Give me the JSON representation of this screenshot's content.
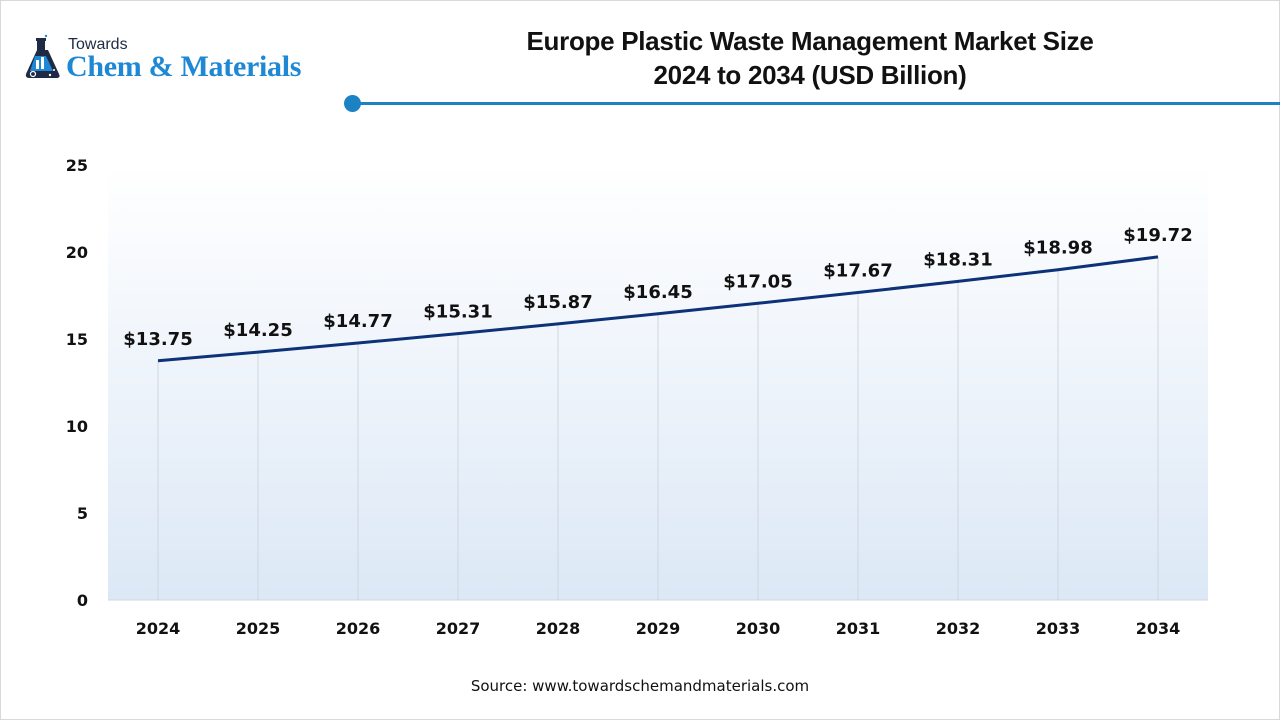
{
  "logo": {
    "line1": "Towards",
    "line2": "Chem & Materials",
    "icon": "flask-icon"
  },
  "colors": {
    "accent": "#1b82c4",
    "line": "#0d3278",
    "plot_top": "#ffffff",
    "plot_bottom": "#dce8f6",
    "grid": "#cfd6de"
  },
  "chart_data": {
    "type": "line",
    "title": "Europe Plastic Waste Management Market Size",
    "subtitle": "2024 to 2034 (USD Billion)",
    "xlabel": "",
    "ylabel": "",
    "categories": [
      "2024",
      "2025",
      "2026",
      "2027",
      "2028",
      "2029",
      "2030",
      "2031",
      "2032",
      "2033",
      "2034"
    ],
    "series": [
      {
        "name": "Market Size (USD Billion)",
        "values": [
          13.75,
          14.25,
          14.77,
          15.31,
          15.87,
          16.45,
          17.05,
          17.67,
          18.31,
          18.98,
          19.72
        ],
        "labels": [
          "$13.75",
          "$14.25",
          "$14.77",
          "$15.31",
          "$15.87",
          "$16.45",
          "$17.05",
          "$17.67",
          "$18.31",
          "$18.98",
          "$19.72"
        ]
      }
    ],
    "ylim": [
      0,
      25
    ],
    "yticks": [
      "0",
      "5",
      "10",
      "15",
      "20",
      "25"
    ],
    "grid": "vertical",
    "legend": "none"
  },
  "source": "Source: www.towardschemandmaterials.com"
}
